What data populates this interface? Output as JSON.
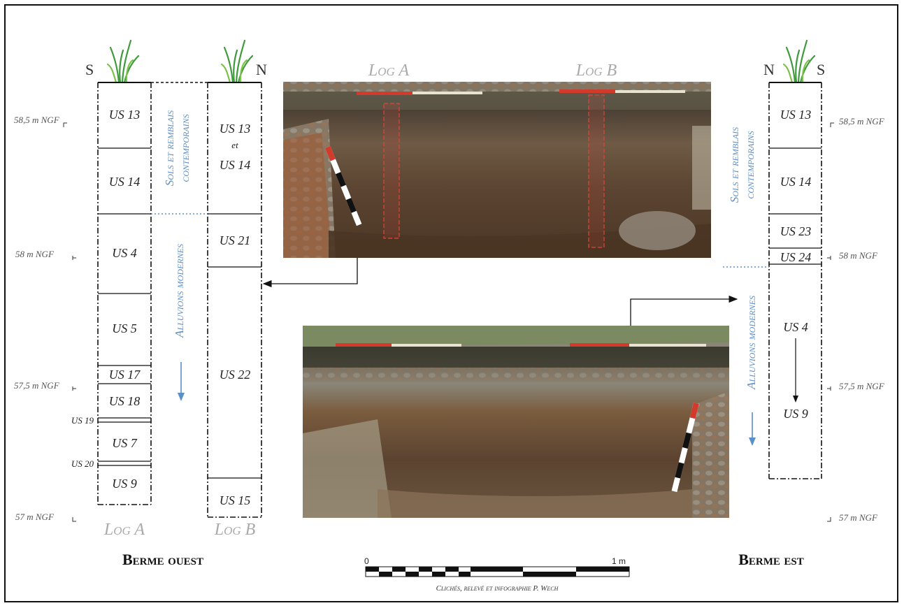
{
  "directions": {
    "west_left": "S",
    "west_right": "N",
    "east_left": "N",
    "east_right": "S"
  },
  "altitudes_west": [
    "58,5 m NGF",
    "58 m NGF",
    "57,5 m NGF",
    "57 m NGF"
  ],
  "altitudes_east": [
    "58,5 m NGF",
    "58 m NGF",
    "57,5 m NGF",
    "57 m NGF"
  ],
  "log_a_units": [
    "US 13",
    "US 14",
    "US 4",
    "US 5",
    "US 17",
    "US 18",
    "US 19",
    "US 7",
    "US 20",
    "US 9"
  ],
  "log_b_units": {
    "top_line1": "US 13",
    "top_line2": "et",
    "top_line3": "US 14",
    "u21": "US 21",
    "u22": "US 22",
    "u15": "US 15"
  },
  "east_units": [
    "US 13",
    "US 14",
    "US 23",
    "US 24",
    "US 4",
    "US 9"
  ],
  "zones": {
    "west_top_line1": "Sols et remblais",
    "west_top_line2": "contemporains",
    "west_bottom": "Alluvions modernes",
    "east_top_line1": "Sols et remblais",
    "east_top_line2": "contemporains",
    "east_bottom": "Alluvions modernes"
  },
  "log_labels": {
    "a_bottom": "Log A",
    "b_bottom": "Log B",
    "a_photo": "Log A",
    "b_photo": "Log B"
  },
  "berme": {
    "west": "Berme ouest",
    "east": "Berme est"
  },
  "scale": {
    "start": "0",
    "end": "1 m"
  },
  "credit": "Clichés, relevé et infographie P. Wech",
  "colors": {
    "zone_text": "#5b8fc7",
    "log_label": "#aaaaaa",
    "scale_rod_red": "#d23b2b",
    "log_strip": "#e0453a"
  }
}
